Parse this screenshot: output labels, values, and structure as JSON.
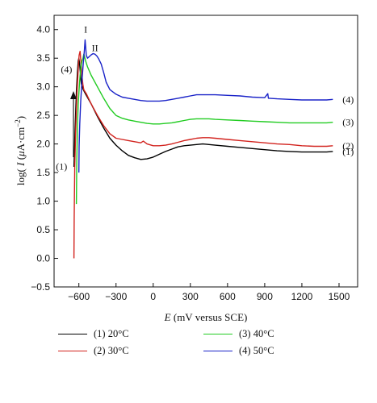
{
  "chart_data": {
    "type": "line",
    "xlabel_var": "E",
    "xlabel_rest": " (mV versus SCE)",
    "ylabel_pre": "log( ",
    "ylabel_var": "I",
    "ylabel_mu": "μ",
    "ylabel_rest": "A·cm",
    "ylabel_sup": "−2",
    "ylabel_close": ")",
    "xlim": [
      -800,
      1650
    ],
    "ylim": [
      -0.5,
      4.25
    ],
    "x_ticks": [
      -600,
      -300,
      0,
      300,
      600,
      900,
      1200,
      1500
    ],
    "x_tick_labels": [
      "−600",
      "−300",
      "0",
      "300",
      "600",
      "900",
      "1200",
      "1500"
    ],
    "y_ticks": [
      -0.5,
      0,
      0.5,
      1,
      1.5,
      2,
      2.5,
      3,
      3.5,
      4
    ],
    "y_tick_labels": [
      "−0.5",
      "0.0",
      "0.5",
      "1.0",
      "1.5",
      "2.0",
      "2.5",
      "3.0",
      "3.5",
      "4.0"
    ],
    "grid": false,
    "legend_position": "bottom",
    "annotations": [
      {
        "text": "I",
        "x": -545,
        "y": 3.95
      },
      {
        "text": "II",
        "x": -470,
        "y": 3.62
      },
      {
        "text": "(4)",
        "x": -700,
        "y": 3.25
      },
      {
        "text": "(1)",
        "x": -740,
        "y": 1.55
      }
    ],
    "series": [
      {
        "name": "20",
        "legend_num": "(1) 20",
        "legend_unit": "°C",
        "end_label": "(1)",
        "color": "#000000",
        "x": [
          -640,
          -630,
          -620,
          -612,
          -605,
          -600,
          -595,
          -588,
          -580,
          -565,
          -540,
          -500,
          -450,
          -400,
          -350,
          -300,
          -250,
          -200,
          -150,
          -100,
          -50,
          0,
          50,
          100,
          150,
          200,
          250,
          300,
          350,
          400,
          450,
          500,
          600,
          700,
          800,
          900,
          1000,
          1100,
          1200,
          1300,
          1400,
          1450
        ],
        "y": [
          1.6,
          2.3,
          2.9,
          3.25,
          3.45,
          3.5,
          3.42,
          3.25,
          3.05,
          2.95,
          2.85,
          2.7,
          2.48,
          2.28,
          2.1,
          1.98,
          1.88,
          1.8,
          1.76,
          1.73,
          1.74,
          1.77,
          1.82,
          1.87,
          1.91,
          1.95,
          1.97,
          1.98,
          1.99,
          2.0,
          1.99,
          1.98,
          1.96,
          1.94,
          1.92,
          1.9,
          1.88,
          1.87,
          1.86,
          1.86,
          1.86,
          1.87
        ]
      },
      {
        "name": "30",
        "legend_num": "(2) 30",
        "legend_unit": "°C",
        "end_label": "(2)",
        "color": "#d2231e",
        "x": [
          -640,
          -638,
          -633,
          -625,
          -615,
          -605,
          -598,
          -590,
          -582,
          -575,
          -568,
          -560,
          -540,
          -500,
          -450,
          -400,
          -350,
          -300,
          -250,
          -200,
          -150,
          -100,
          -80,
          -50,
          0,
          50,
          100,
          150,
          200,
          250,
          300,
          350,
          400,
          450,
          500,
          600,
          700,
          800,
          900,
          1000,
          1100,
          1200,
          1300,
          1400,
          1450
        ],
        "y": [
          0.0,
          0.7,
          1.6,
          2.3,
          2.9,
          3.3,
          3.55,
          3.62,
          3.4,
          3.2,
          3.05,
          2.95,
          2.88,
          2.7,
          2.5,
          2.32,
          2.18,
          2.1,
          2.08,
          2.06,
          2.04,
          2.02,
          2.05,
          2.0,
          1.97,
          1.97,
          1.98,
          2.0,
          2.03,
          2.06,
          2.08,
          2.1,
          2.11,
          2.11,
          2.1,
          2.08,
          2.06,
          2.04,
          2.02,
          2.0,
          1.99,
          1.97,
          1.96,
          1.96,
          1.97
        ]
      },
      {
        "name": "40",
        "legend_num": "(3) 40",
        "legend_unit": "°C",
        "end_label": "(3)",
        "color": "#22cc22",
        "x": [
          -620,
          -617,
          -612,
          -605,
          -597,
          -590,
          -583,
          -575,
          -567,
          -560,
          -553,
          -545,
          -530,
          -500,
          -450,
          -400,
          -350,
          -300,
          -250,
          -200,
          -150,
          -100,
          -50,
          0,
          50,
          100,
          150,
          200,
          250,
          300,
          350,
          400,
          450,
          500,
          600,
          700,
          800,
          900,
          1000,
          1100,
          1200,
          1300,
          1400,
          1450
        ],
        "y": [
          0.95,
          1.7,
          2.3,
          2.7,
          3.0,
          3.2,
          3.35,
          3.45,
          3.5,
          3.57,
          3.52,
          3.45,
          3.35,
          3.2,
          3.0,
          2.8,
          2.62,
          2.5,
          2.45,
          2.42,
          2.4,
          2.38,
          2.36,
          2.35,
          2.35,
          2.36,
          2.37,
          2.39,
          2.41,
          2.43,
          2.44,
          2.44,
          2.44,
          2.43,
          2.42,
          2.41,
          2.4,
          2.39,
          2.38,
          2.37,
          2.37,
          2.37,
          2.37,
          2.38
        ]
      },
      {
        "name": "50",
        "legend_num": "(4) 50",
        "legend_unit": "°C",
        "end_label": "(4)",
        "color": "#1a23c8",
        "x": [
          -600,
          -598,
          -593,
          -585,
          -575,
          -565,
          -555,
          -550,
          -545,
          -540,
          -530,
          -515,
          -500,
          -485,
          -470,
          -455,
          -440,
          -420,
          -400,
          -380,
          -350,
          -300,
          -250,
          -200,
          -150,
          -100,
          -50,
          0,
          50,
          100,
          150,
          200,
          250,
          300,
          350,
          400,
          450,
          500,
          600,
          700,
          800,
          900,
          925,
          930,
          935,
          1000,
          1100,
          1200,
          1300,
          1400,
          1450
        ],
        "y": [
          1.5,
          1.95,
          2.35,
          2.75,
          3.1,
          3.4,
          3.65,
          3.82,
          3.7,
          3.55,
          3.5,
          3.53,
          3.56,
          3.58,
          3.57,
          3.54,
          3.49,
          3.4,
          3.25,
          3.08,
          2.95,
          2.87,
          2.82,
          2.8,
          2.78,
          2.76,
          2.75,
          2.75,
          2.75,
          2.76,
          2.78,
          2.8,
          2.82,
          2.84,
          2.86,
          2.86,
          2.86,
          2.86,
          2.85,
          2.84,
          2.82,
          2.81,
          2.88,
          2.8,
          2.8,
          2.79,
          2.78,
          2.77,
          2.77,
          2.77,
          2.78
        ]
      }
    ]
  }
}
